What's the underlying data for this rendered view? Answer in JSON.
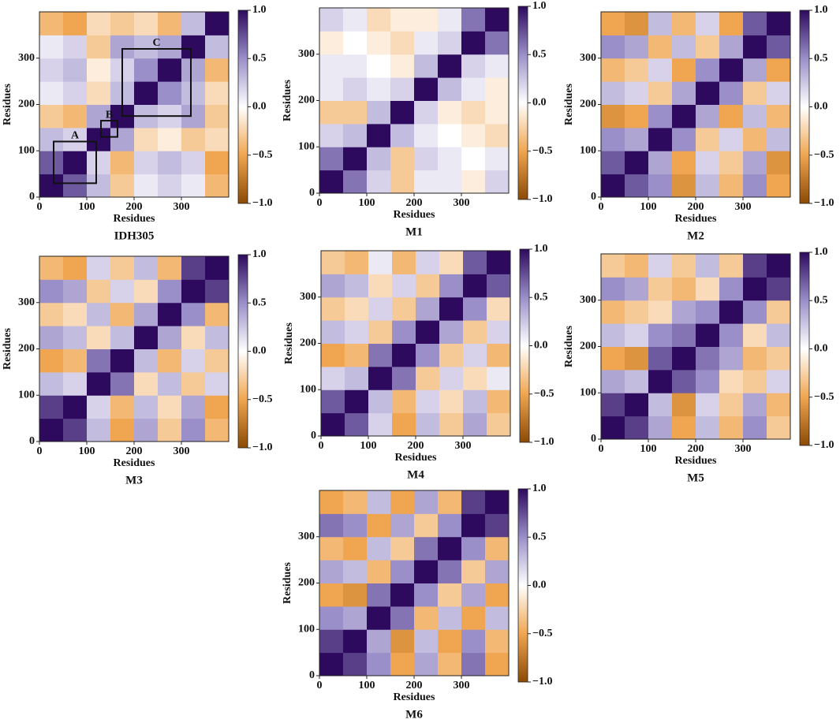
{
  "chart_data": [
    {
      "type": "heatmap",
      "title": "IDH305",
      "x_label": "Residues",
      "y_label": "Residues",
      "bins": [
        0,
        50,
        100,
        150,
        200,
        250,
        300,
        350,
        400
      ],
      "xlim": [
        0,
        400
      ],
      "ylim": [
        0,
        400
      ],
      "xticks": [
        0,
        100,
        200,
        300
      ],
      "yticks": [
        0,
        100,
        200,
        300
      ],
      "zlim": [
        -1,
        1
      ],
      "zticks": [
        {
          "value": 1,
          "label": "1.0"
        },
        0.5,
        {
          "value": 0,
          "label": "0.0"
        },
        {
          "value": -0.5,
          "label": "−0.5"
        },
        {
          "value": -1,
          "label": "−1.0"
        }
      ],
      "colormap": [
        "#8c4a05",
        "#f0a650",
        "#ffffff",
        "#9a8fc8",
        "#2d0a5e"
      ],
      "annotations": [
        {
          "label": "A",
          "x": [
            30,
            120
          ],
          "y": [
            30,
            120
          ]
        },
        {
          "label": "B",
          "x": [
            130,
            165
          ],
          "y": [
            130,
            165
          ]
        },
        {
          "label": "C",
          "x": [
            175,
            320
          ],
          "y": [
            175,
            320
          ]
        }
      ],
      "z": [
        [
          1,
          0.7,
          0.3,
          -0.3,
          0.1,
          0.2,
          0.1,
          -0.4
        ],
        [
          0.7,
          1,
          0.2,
          -0.4,
          0.2,
          0.3,
          0.2,
          -0.5
        ],
        [
          0.3,
          0.2,
          1,
          0.4,
          -0.2,
          -0.1,
          -0.3,
          -0.2
        ],
        [
          -0.3,
          -0.4,
          0.4,
          1,
          0.3,
          0.2,
          0.4,
          -0.3
        ],
        [
          0.1,
          0.2,
          -0.2,
          0.3,
          1,
          0.5,
          0.3,
          -0.2
        ],
        [
          0.2,
          0.3,
          -0.1,
          0.2,
          0.5,
          1,
          0.4,
          -0.4
        ],
        [
          0.1,
          0.2,
          -0.3,
          0.4,
          0.3,
          0.4,
          1,
          0.3
        ],
        [
          -0.4,
          -0.5,
          -0.2,
          -0.3,
          -0.2,
          -0.4,
          0.3,
          1
        ]
      ]
    },
    {
      "type": "heatmap",
      "title": "M1",
      "x_label": "Residues",
      "y_label": "Residues",
      "bins": [
        0,
        50,
        100,
        150,
        200,
        250,
        300,
        350,
        400
      ],
      "xlim": [
        0,
        400
      ],
      "ylim": [
        0,
        400
      ],
      "xticks": [
        0,
        100,
        200,
        300
      ],
      "yticks": [
        0,
        100,
        200,
        300
      ],
      "zlim": [
        -1,
        1
      ],
      "zticks": [
        {
          "value": 1,
          "label": "1.0"
        },
        0.5,
        {
          "value": 0,
          "label": "0.0"
        },
        {
          "value": -0.5,
          "label": "−0.5"
        },
        {
          "value": -1,
          "label": "−1.0"
        }
      ],
      "colormap": [
        "#8c4a05",
        "#f0a650",
        "#ffffff",
        "#9a8fc8",
        "#2d0a5e"
      ],
      "z": [
        [
          1,
          0.6,
          0.2,
          -0.3,
          0.1,
          0.1,
          -0.1,
          0.2
        ],
        [
          0.6,
          1,
          0.3,
          -0.3,
          0.2,
          0.1,
          0,
          0.1
        ],
        [
          0.2,
          0.3,
          1,
          0.3,
          0.1,
          0,
          -0.1,
          -0.2
        ],
        [
          -0.3,
          -0.3,
          0.3,
          1,
          0.2,
          -0.1,
          -0.2,
          -0.1
        ],
        [
          0.1,
          0.2,
          0.1,
          0.2,
          1,
          0.3,
          0.1,
          -0.1
        ],
        [
          0.1,
          0.1,
          0,
          -0.1,
          0.3,
          1,
          0.2,
          0.1
        ],
        [
          -0.1,
          0,
          -0.1,
          -0.2,
          0.1,
          0.2,
          1,
          0.6
        ],
        [
          0.2,
          0.1,
          -0.2,
          -0.1,
          -0.1,
          0.1,
          0.6,
          1
        ]
      ]
    },
    {
      "type": "heatmap",
      "title": "M2",
      "x_label": "Residues",
      "y_label": "Residues",
      "bins": [
        0,
        50,
        100,
        150,
        200,
        250,
        300,
        350,
        400
      ],
      "xlim": [
        0,
        400
      ],
      "ylim": [
        0,
        400
      ],
      "xticks": [
        0,
        100,
        200,
        300
      ],
      "yticks": [
        0,
        100,
        200,
        300
      ],
      "zlim": [
        -1,
        1
      ],
      "zticks": [
        {
          "value": 1,
          "label": "1.0"
        },
        0.5,
        {
          "value": 0,
          "label": "0.0"
        },
        {
          "value": -0.5,
          "label": "−0.5"
        },
        {
          "value": -1,
          "label": "−1.0"
        }
      ],
      "colormap": [
        "#8c4a05",
        "#f0a650",
        "#ffffff",
        "#9a8fc8",
        "#2d0a5e"
      ],
      "z": [
        [
          1,
          0.7,
          0.5,
          -0.6,
          0.3,
          -0.4,
          0.5,
          -0.5
        ],
        [
          0.7,
          1,
          0.4,
          -0.5,
          0.2,
          -0.3,
          0.4,
          -0.6
        ],
        [
          0.5,
          0.4,
          1,
          0.5,
          -0.3,
          0.2,
          -0.4,
          0.3
        ],
        [
          -0.6,
          -0.5,
          0.5,
          1,
          0.4,
          -0.5,
          0.3,
          -0.4
        ],
        [
          0.3,
          0.2,
          -0.3,
          0.4,
          1,
          0.5,
          -0.3,
          0.2
        ],
        [
          -0.4,
          -0.3,
          0.2,
          -0.5,
          0.5,
          1,
          0.4,
          -0.5
        ],
        [
          0.5,
          0.4,
          -0.4,
          0.3,
          -0.3,
          0.4,
          1,
          0.7
        ],
        [
          -0.5,
          -0.6,
          0.3,
          -0.4,
          0.2,
          -0.5,
          0.7,
          1
        ]
      ]
    },
    {
      "type": "heatmap",
      "title": "M3",
      "x_label": "Residues",
      "y_label": "Residues",
      "bins": [
        0,
        50,
        100,
        150,
        200,
        250,
        300,
        350,
        400
      ],
      "xlim": [
        0,
        400
      ],
      "ylim": [
        0,
        400
      ],
      "xticks": [
        0,
        100,
        200,
        300
      ],
      "yticks": [
        0,
        100,
        200,
        300
      ],
      "zlim": [
        -1,
        1
      ],
      "zticks": [
        {
          "value": 1,
          "label": "1.0"
        },
        0.5,
        {
          "value": 0,
          "label": "0.0"
        },
        {
          "value": -0.5,
          "label": "−0.5"
        },
        {
          "value": -1,
          "label": "−1.0"
        }
      ],
      "colormap": [
        "#8c4a05",
        "#f0a650",
        "#ffffff",
        "#9a8fc8",
        "#2d0a5e"
      ],
      "z": [
        [
          1,
          0.8,
          0.3,
          -0.5,
          0.4,
          -0.3,
          0.5,
          -0.4
        ],
        [
          0.8,
          1,
          0.2,
          -0.4,
          0.3,
          -0.2,
          0.4,
          -0.5
        ],
        [
          0.3,
          0.2,
          1,
          0.6,
          -0.2,
          0.3,
          -0.3,
          0.2
        ],
        [
          -0.5,
          -0.4,
          0.6,
          1,
          0.3,
          -0.4,
          0.2,
          -0.3
        ],
        [
          0.4,
          0.3,
          -0.2,
          0.3,
          1,
          0.4,
          -0.2,
          0.3
        ],
        [
          -0.3,
          -0.2,
          0.3,
          -0.4,
          0.4,
          1,
          0.5,
          -0.4
        ],
        [
          0.5,
          0.4,
          -0.3,
          0.2,
          -0.2,
          0.5,
          1,
          0.8
        ],
        [
          -0.4,
          -0.5,
          0.2,
          -0.3,
          0.3,
          -0.4,
          0.8,
          1
        ]
      ]
    },
    {
      "type": "heatmap",
      "title": "M4",
      "x_label": "Residues",
      "y_label": "Residues",
      "bins": [
        0,
        50,
        100,
        150,
        200,
        250,
        300,
        350,
        400
      ],
      "xlim": [
        0,
        400
      ],
      "ylim": [
        0,
        400
      ],
      "xticks": [
        0,
        100,
        200,
        300
      ],
      "yticks": [
        0,
        100,
        200,
        300
      ],
      "zlim": [
        -1,
        1
      ],
      "zticks": [
        {
          "value": 1,
          "label": "1.0"
        },
        0.5,
        {
          "value": 0,
          "label": "0.0"
        },
        {
          "value": -0.5,
          "label": "−0.5"
        },
        {
          "value": -1,
          "label": "−1.0"
        }
      ],
      "colormap": [
        "#8c4a05",
        "#f0a650",
        "#ffffff",
        "#9a8fc8",
        "#2d0a5e"
      ],
      "z": [
        [
          1,
          0.7,
          0.2,
          -0.5,
          0.3,
          -0.3,
          0.4,
          -0.3
        ],
        [
          0.7,
          1,
          0.3,
          -0.4,
          0.2,
          -0.2,
          0.3,
          -0.4
        ],
        [
          0.2,
          0.3,
          1,
          0.6,
          -0.3,
          0.2,
          -0.2,
          0.1
        ],
        [
          -0.5,
          -0.4,
          0.6,
          1,
          0.5,
          -0.3,
          0.2,
          -0.4
        ],
        [
          0.3,
          0.2,
          -0.3,
          0.5,
          1,
          0.4,
          -0.3,
          0.2
        ],
        [
          -0.3,
          -0.2,
          0.2,
          -0.3,
          0.4,
          1,
          0.5,
          -0.2
        ],
        [
          0.4,
          0.3,
          -0.2,
          0.2,
          -0.3,
          0.5,
          1,
          0.7
        ],
        [
          -0.3,
          -0.4,
          0.1,
          -0.4,
          0.2,
          -0.2,
          0.7,
          1
        ]
      ]
    },
    {
      "type": "heatmap",
      "title": "M5",
      "x_label": "Residues",
      "y_label": "Residues",
      "bins": [
        0,
        50,
        100,
        150,
        200,
        250,
        300,
        350,
        400
      ],
      "xlim": [
        0,
        400
      ],
      "ylim": [
        0,
        400
      ],
      "xticks": [
        0,
        100,
        200,
        300
      ],
      "yticks": [
        0,
        100,
        200,
        300
      ],
      "zlim": [
        -1,
        1
      ],
      "zticks": [
        {
          "value": 1,
          "label": "1.0"
        },
        0.5,
        {
          "value": 0,
          "label": "0.0"
        },
        {
          "value": -0.5,
          "label": "−0.5"
        },
        {
          "value": -1,
          "label": "−1.0"
        }
      ],
      "colormap": [
        "#8c4a05",
        "#f0a650",
        "#ffffff",
        "#9a8fc8",
        "#2d0a5e"
      ],
      "z": [
        [
          1,
          0.8,
          0.4,
          -0.5,
          0.3,
          -0.4,
          0.5,
          -0.3
        ],
        [
          0.8,
          1,
          0.3,
          -0.6,
          0.2,
          -0.3,
          0.4,
          -0.4
        ],
        [
          0.4,
          0.3,
          1,
          0.7,
          0.5,
          -0.2,
          -0.3,
          0.2
        ],
        [
          -0.5,
          -0.6,
          0.7,
          1,
          0.6,
          0.4,
          -0.4,
          -0.3
        ],
        [
          0.3,
          0.2,
          0.5,
          0.6,
          1,
          0.5,
          -0.2,
          0.3
        ],
        [
          -0.4,
          -0.3,
          -0.2,
          0.4,
          0.5,
          1,
          0.5,
          -0.3
        ],
        [
          0.5,
          0.4,
          -0.3,
          -0.4,
          -0.2,
          0.5,
          1,
          0.8
        ],
        [
          -0.3,
          -0.4,
          0.2,
          -0.3,
          0.3,
          -0.3,
          0.8,
          1
        ]
      ]
    },
    {
      "type": "heatmap",
      "title": "M6",
      "x_label": "Residues",
      "y_label": "Residues",
      "bins": [
        0,
        50,
        100,
        150,
        200,
        250,
        300,
        350,
        400
      ],
      "xlim": [
        0,
        400
      ],
      "ylim": [
        0,
        400
      ],
      "xticks": [
        0,
        100,
        200,
        300
      ],
      "yticks": [
        0,
        100,
        200,
        300
      ],
      "zlim": [
        -1,
        1
      ],
      "zticks": [
        {
          "value": 1,
          "label": "1.0"
        },
        0.5,
        {
          "value": 0,
          "label": "0.0"
        },
        {
          "value": -0.5,
          "label": "−0.5"
        },
        {
          "value": -1,
          "label": "−1.0"
        }
      ],
      "colormap": [
        "#8c4a05",
        "#f0a650",
        "#ffffff",
        "#9a8fc8",
        "#2d0a5e"
      ],
      "z": [
        [
          1,
          0.8,
          0.5,
          -0.5,
          0.4,
          -0.4,
          0.6,
          -0.5
        ],
        [
          0.8,
          1,
          0.4,
          -0.6,
          0.3,
          -0.5,
          0.5,
          -0.4
        ],
        [
          0.5,
          0.4,
          1,
          0.6,
          -0.4,
          0.3,
          -0.5,
          0.3
        ],
        [
          -0.5,
          -0.6,
          0.6,
          1,
          0.5,
          -0.3,
          0.4,
          -0.5
        ],
        [
          0.4,
          0.3,
          -0.4,
          0.5,
          1,
          0.6,
          -0.3,
          0.4
        ],
        [
          -0.4,
          -0.5,
          0.3,
          -0.3,
          0.6,
          1,
          0.5,
          -0.4
        ],
        [
          0.6,
          0.5,
          -0.5,
          0.4,
          -0.3,
          0.5,
          1,
          0.8
        ],
        [
          -0.5,
          -0.4,
          0.3,
          -0.5,
          0.4,
          -0.4,
          0.8,
          1
        ]
      ]
    }
  ]
}
